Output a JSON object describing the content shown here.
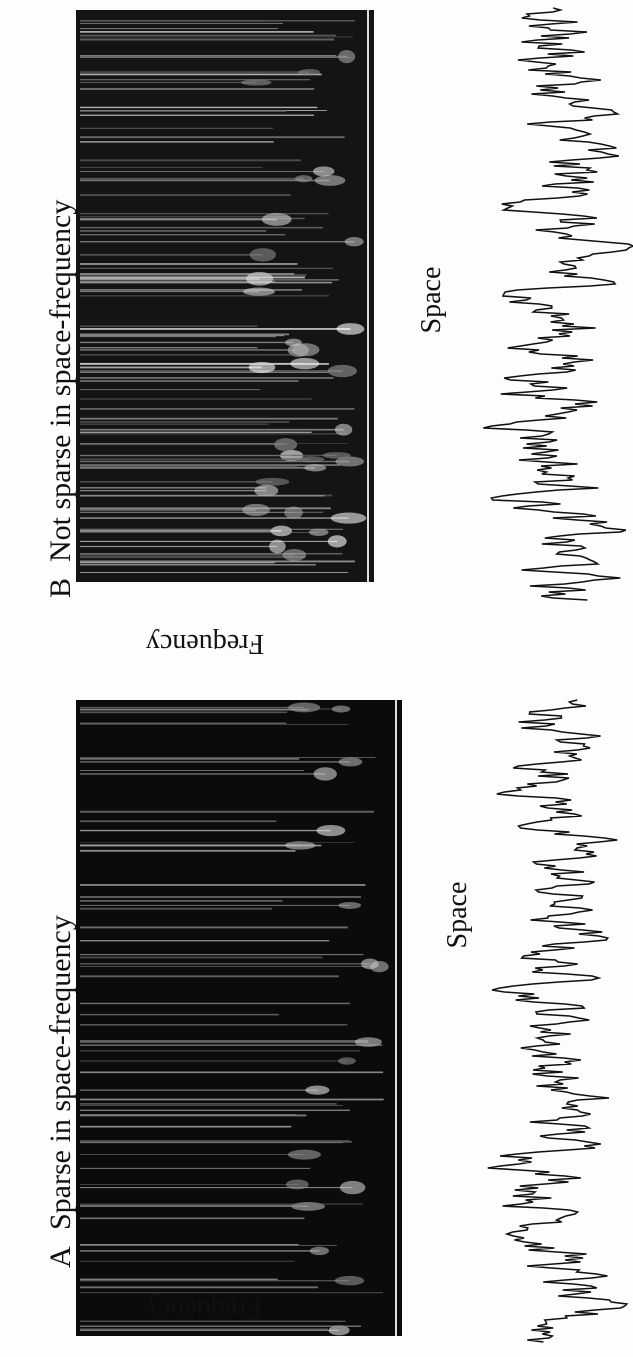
{
  "panels": [
    {
      "label": "A",
      "title": "Sparse in space-frequency",
      "y_axis": "Frequency",
      "x_axis": "Space"
    },
    {
      "label": "B",
      "title": "Not sparse in space-frequency",
      "y_axis": "Frequency",
      "x_axis": "Space"
    }
  ]
}
